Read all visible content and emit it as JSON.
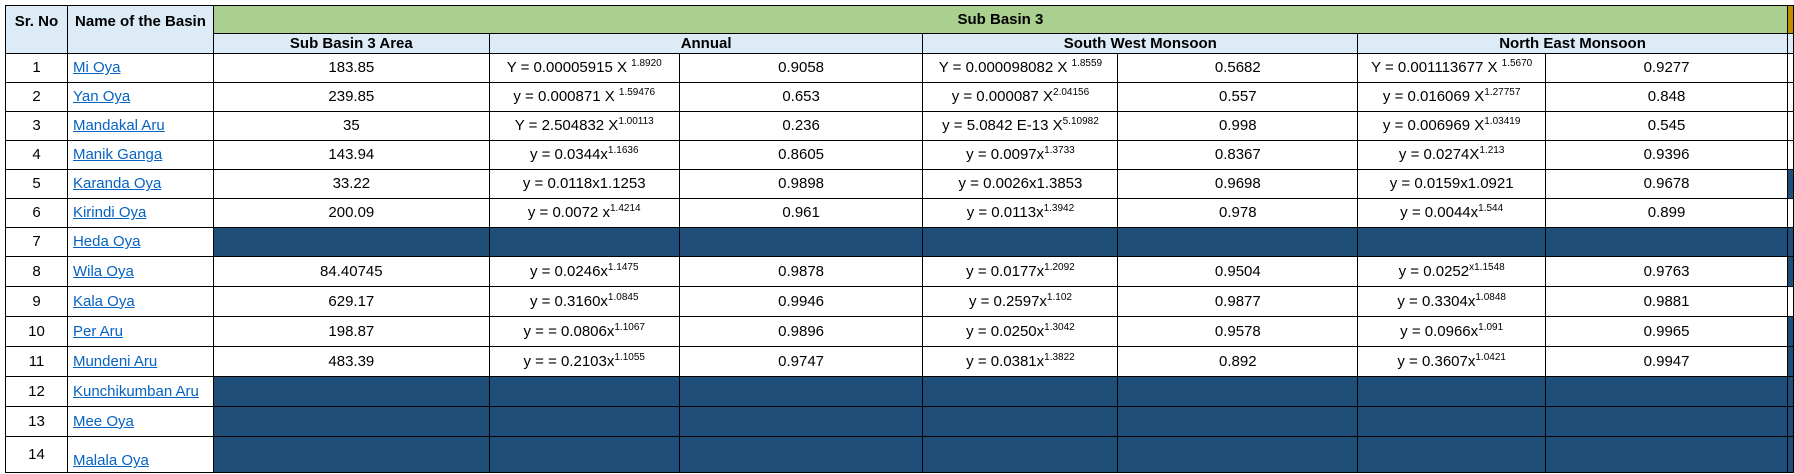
{
  "table": {
    "headers": {
      "sr_no": "Sr. No",
      "basin_name": "Name of the Basin",
      "group": "Sub Basin 3",
      "area": "Sub Basin 3 Area",
      "annual": "Annual",
      "south_west": "South West Monsoon",
      "north_east": "North East Monsoon"
    },
    "rows": [
      {
        "no": "1",
        "name": "Mi Oya",
        "area": "183.85",
        "filled": false,
        "annual_eq": {
          "base": "Y = 0.00005915 X ",
          "exp": "1.8920"
        },
        "annual_r2": "0.9058",
        "swm_eq": {
          "base": "Y = 0.000098082 X ",
          "exp": "1.8559"
        },
        "swm_r2": "0.5682",
        "nem_eq": {
          "base": "Y = 0.001113677 X ",
          "exp": "1.5670"
        },
        "nem_r2": "0.9277"
      },
      {
        "no": "2",
        "name": "Yan Oya",
        "area": "239.85",
        "filled": false,
        "annual_eq": {
          "base": "y = 0.000871 X ",
          "exp": "1.59476"
        },
        "annual_r2": "0.653",
        "swm_eq": {
          "base": "y = 0.000087 X",
          "exp": "2.04156"
        },
        "swm_r2": "0.557",
        "nem_eq": {
          "base": "y = 0.016069 X",
          "exp": "1.27757"
        },
        "nem_r2": "0.848"
      },
      {
        "no": "3",
        "name": "Mandakal Aru",
        "area": "35",
        "filled": false,
        "annual_eq": {
          "base": "Y = 2.504832 X",
          "exp": "1.00113"
        },
        "annual_r2": "0.236",
        "swm_eq": {
          "base": "y = 5.0842 E-13 X",
          "exp": "5.10982"
        },
        "swm_r2": "0.998",
        "nem_eq": {
          "base": "y = 0.006969 X",
          "exp": "1.03419"
        },
        "nem_r2": "0.545"
      },
      {
        "no": "4",
        "name": "Manik Ganga",
        "area": "143.94",
        "filled": false,
        "annual_eq": {
          "base": "y = 0.0344x",
          "exp": "1.1636"
        },
        "annual_r2": "0.8605",
        "swm_eq": {
          "base": "y = 0.0097x",
          "exp": "1.3733"
        },
        "swm_r2": "0.8367",
        "nem_eq": {
          "base": "y = 0.0274X",
          "exp": "1.213"
        },
        "nem_r2": "0.9396"
      },
      {
        "no": "5",
        "name": "Karanda Oya",
        "area": "33.22",
        "filled": false,
        "annual_eq": {
          "base": "y = 0.0118x1.1253",
          "exp": ""
        },
        "annual_r2": "0.9898",
        "swm_eq": {
          "base": "y = 0.0026x1.3853",
          "exp": ""
        },
        "swm_r2": "0.9698",
        "nem_eq": {
          "base": "y = 0.0159x1.0921",
          "exp": ""
        },
        "nem_r2": "0.9678"
      },
      {
        "no": "6",
        "name": "Kirindi Oya",
        "area": "200.09",
        "filled": false,
        "annual_eq": {
          "base": "y = 0.0072 x",
          "exp": "1.4214"
        },
        "annual_r2": "0.961",
        "swm_eq": {
          "base": "y = 0.0113x",
          "exp": "1.3942"
        },
        "swm_r2": "0.978",
        "nem_eq": {
          "base": "y = 0.0044x",
          "exp": "1.544"
        },
        "nem_r2": "0.899"
      },
      {
        "no": "7",
        "name": "Heda Oya",
        "area": "",
        "filled": true,
        "annual_eq": {
          "base": "",
          "exp": ""
        },
        "annual_r2": "",
        "swm_eq": {
          "base": "",
          "exp": ""
        },
        "swm_r2": "",
        "nem_eq": {
          "base": "",
          "exp": ""
        },
        "nem_r2": ""
      },
      {
        "no": "8",
        "name": "Wila Oya",
        "area": "84.40745",
        "filled": false,
        "annual_eq": {
          "base": "y = 0.0246x",
          "exp": "1.1475"
        },
        "annual_r2": "0.9878",
        "swm_eq": {
          "base": "y = 0.0177x",
          "exp": "1.2092"
        },
        "swm_r2": "0.9504",
        "nem_eq": {
          "base": "y = 0.0252",
          "exp": "x1.1548"
        },
        "nem_r2": "0.9763"
      },
      {
        "no": "9",
        "name": "Kala Oya",
        "area": "629.17",
        "filled": false,
        "annual_eq": {
          "base": "y = 0.3160x",
          "exp": "1.0845"
        },
        "annual_r2": "0.9946",
        "swm_eq": {
          "base": "y = 0.2597x",
          "exp": "1.102"
        },
        "swm_r2": "0.9877",
        "nem_eq": {
          "base": "y = 0.3304x",
          "exp": "1.0848"
        },
        "nem_r2": "0.9881"
      },
      {
        "no": "10",
        "name": "Per Aru",
        "area": "198.87",
        "filled": false,
        "annual_eq": {
          "base": "y = = 0.0806x",
          "exp": "1.1067"
        },
        "annual_r2": "0.9896",
        "swm_eq": {
          "base": "y = 0.0250x",
          "exp": "1.3042"
        },
        "swm_r2": "0.9578",
        "nem_eq": {
          "base": "y = 0.0966x",
          "exp": "1.091"
        },
        "nem_r2": "0.9965"
      },
      {
        "no": "11",
        "name": "Mundeni Aru",
        "area": "483.39",
        "filled": false,
        "annual_eq": {
          "base": "y = = 0.2103x",
          "exp": "1.1055"
        },
        "annual_r2": "0.9747",
        "swm_eq": {
          "base": "y = 0.0381x",
          "exp": "1.3822"
        },
        "swm_r2": "0.892",
        "nem_eq": {
          "base": "y = 0.3607x",
          "exp": "1.0421"
        },
        "nem_r2": "0.9947"
      },
      {
        "no": "12",
        "name": "Kunchikumban Aru",
        "area": "",
        "filled": true,
        "annual_eq": {
          "base": "",
          "exp": ""
        },
        "annual_r2": "",
        "swm_eq": {
          "base": "",
          "exp": ""
        },
        "swm_r2": "",
        "nem_eq": {
          "base": "",
          "exp": ""
        },
        "nem_r2": ""
      },
      {
        "no": "13",
        "name": "Mee Oya",
        "area": "",
        "filled": true,
        "annual_eq": {
          "base": "",
          "exp": ""
        },
        "annual_r2": "",
        "swm_eq": {
          "base": "",
          "exp": ""
        },
        "swm_r2": "",
        "nem_eq": {
          "base": "",
          "exp": ""
        },
        "nem_r2": ""
      },
      {
        "no": "14",
        "name": "Malala Oya",
        "area": "",
        "filled": true,
        "annual_eq": {
          "base": "",
          "exp": ""
        },
        "annual_r2": "",
        "swm_eq": {
          "base": "",
          "exp": ""
        },
        "swm_r2": "",
        "nem_eq": {
          "base": "",
          "exp": ""
        },
        "nem_r2": ""
      }
    ]
  },
  "right_edge_filled_rows": [
    "5",
    "7",
    "8",
    "10",
    "11",
    "12",
    "13",
    "14"
  ],
  "colors": {
    "header_green": "#A9D08E",
    "header_blue": "#DDEBF7",
    "filled_dark_blue": "#1F4E79",
    "corner_orange": "#BF8F00",
    "hyperlink_blue": "#0563C1"
  }
}
